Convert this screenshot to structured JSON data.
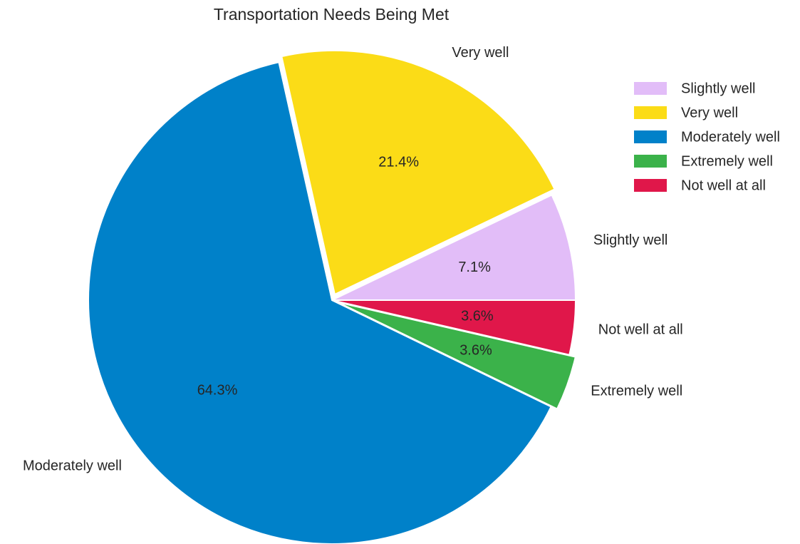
{
  "chart_data": {
    "type": "pie",
    "title": "Transportation Needs Being Met",
    "categories": [
      "Slightly well",
      "Very well",
      "Moderately well",
      "Extremely well",
      "Not well at all"
    ],
    "values": [
      7.1,
      21.4,
      64.3,
      3.6,
      3.6
    ],
    "percent_labels": [
      "7.1%",
      "21.4%",
      "64.3%",
      "3.6%",
      "3.6%"
    ],
    "colors": [
      "#e2bdf8",
      "#fbdc17",
      "#0081c9",
      "#3bb24a",
      "#e0174a"
    ],
    "exploded": [
      false,
      true,
      false,
      true,
      false
    ],
    "legend": {
      "placement": "upper-right",
      "entries": [
        "Slightly well",
        "Very well",
        "Moderately well",
        "Extremely well",
        "Not well at all"
      ]
    }
  }
}
